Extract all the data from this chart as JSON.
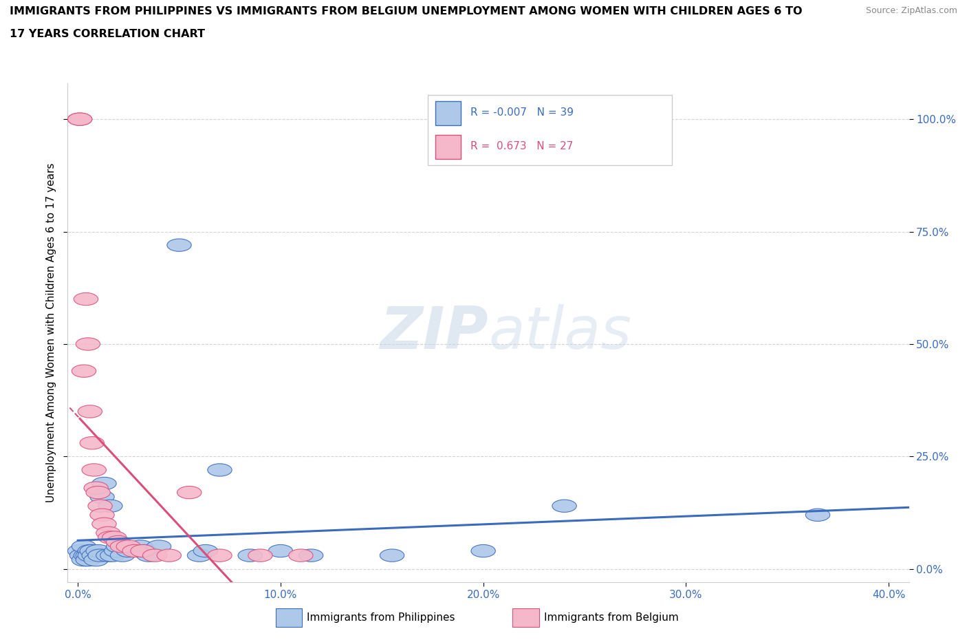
{
  "title_line1": "IMMIGRANTS FROM PHILIPPINES VS IMMIGRANTS FROM BELGIUM UNEMPLOYMENT AMONG WOMEN WITH CHILDREN AGES 6 TO",
  "title_line2": "17 YEARS CORRELATION CHART",
  "source": "Source: ZipAtlas.com",
  "xlabel_vals": [
    0.0,
    0.1,
    0.2,
    0.3,
    0.4
  ],
  "xlabel_labels": [
    "0.0%",
    "10.0%",
    "20.0%",
    "30.0%",
    "40.0%"
  ],
  "ylabel_vals": [
    0.0,
    0.25,
    0.5,
    0.75,
    1.0
  ],
  "ylabel_labels": [
    "0.0%",
    "25.0%",
    "50.0%",
    "75.0%",
    "100.0%"
  ],
  "xlim": [
    -0.005,
    0.41
  ],
  "ylim": [
    -0.03,
    1.08
  ],
  "philippines_R": -0.007,
  "philippines_N": 39,
  "belgium_R": 0.673,
  "belgium_N": 27,
  "philippines_color": "#adc8e8",
  "belgium_color": "#f5b8cb",
  "trend_philippines_color": "#3a6bbf",
  "trend_belgium_color": "#d94f7a",
  "watermark_color": "#d0dce8",
  "ylabel": "Unemployment Among Women with Children Ages 6 to 17 years",
  "philippines_x": [
    0.001,
    0.002,
    0.003,
    0.003,
    0.004,
    0.005,
    0.005,
    0.006,
    0.006,
    0.007,
    0.008,
    0.009,
    0.01,
    0.011,
    0.012,
    0.013,
    0.015,
    0.016,
    0.017,
    0.019,
    0.02,
    0.022,
    0.025,
    0.03,
    0.031,
    0.033,
    0.035,
    0.04,
    0.05,
    0.06,
    0.063,
    0.07,
    0.085,
    0.1,
    0.115,
    0.155,
    0.2,
    0.24,
    0.365
  ],
  "philippines_y": [
    0.04,
    0.03,
    0.02,
    0.05,
    0.03,
    0.03,
    0.02,
    0.04,
    0.03,
    0.04,
    0.03,
    0.02,
    0.04,
    0.03,
    0.16,
    0.19,
    0.03,
    0.14,
    0.03,
    0.04,
    0.05,
    0.03,
    0.04,
    0.04,
    0.05,
    0.04,
    0.03,
    0.05,
    0.72,
    0.03,
    0.04,
    0.22,
    0.03,
    0.04,
    0.03,
    0.03,
    0.04,
    0.14,
    0.12
  ],
  "belgium_x": [
    0.001,
    0.001,
    0.003,
    0.004,
    0.005,
    0.006,
    0.007,
    0.008,
    0.009,
    0.01,
    0.011,
    0.012,
    0.013,
    0.015,
    0.016,
    0.018,
    0.02,
    0.022,
    0.025,
    0.028,
    0.032,
    0.038,
    0.045,
    0.055,
    0.07,
    0.09,
    0.11
  ],
  "belgium_y": [
    1.0,
    1.0,
    0.44,
    0.6,
    0.5,
    0.35,
    0.28,
    0.22,
    0.18,
    0.17,
    0.14,
    0.12,
    0.1,
    0.08,
    0.07,
    0.07,
    0.06,
    0.05,
    0.05,
    0.04,
    0.04,
    0.03,
    0.03,
    0.17,
    0.03,
    0.03,
    0.03
  ]
}
